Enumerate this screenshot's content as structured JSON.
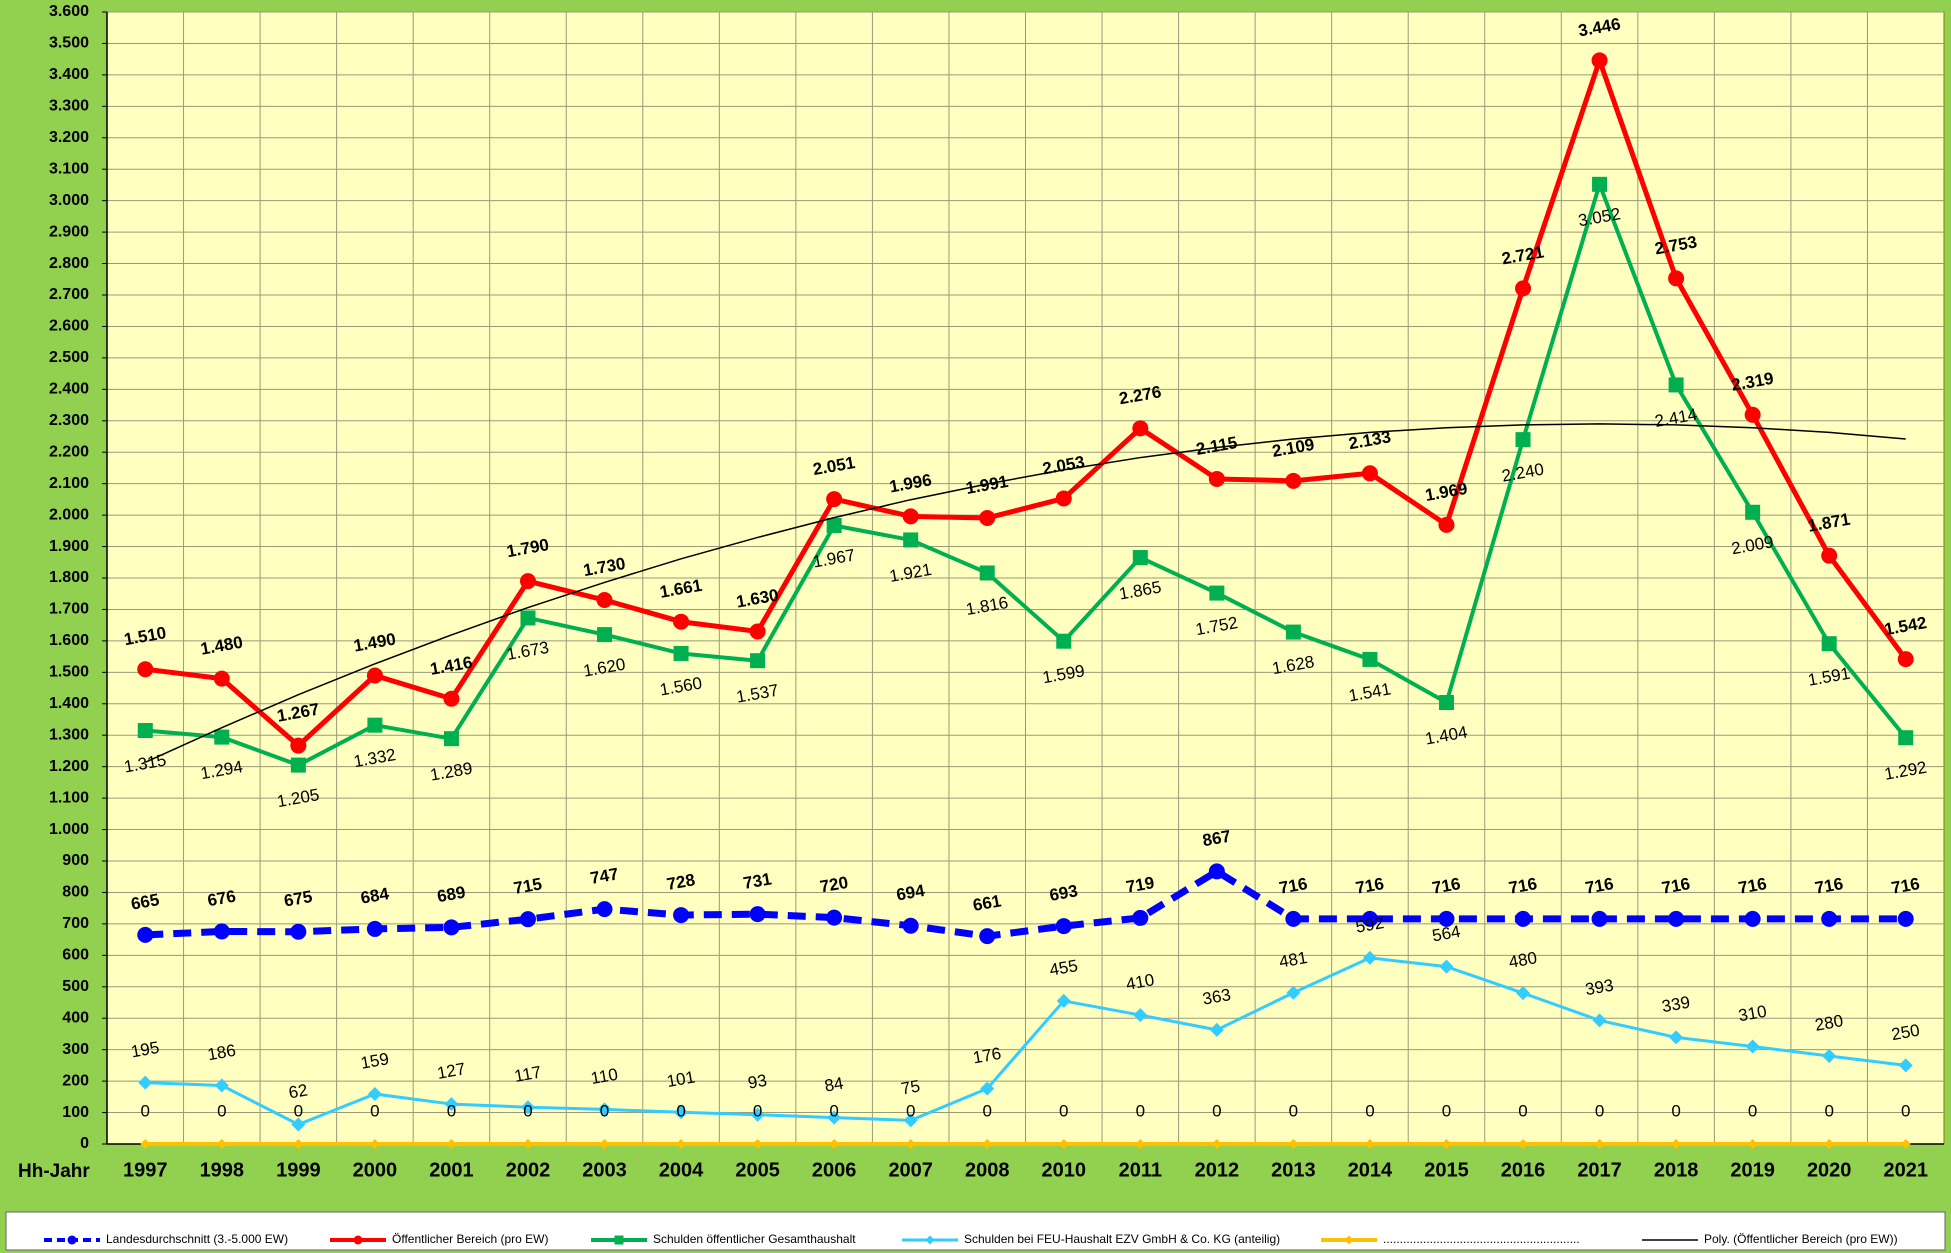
{
  "chart_data": {
    "type": "line",
    "x_label": "Hh-Jahr",
    "categories": [
      "1997",
      "1998",
      "1999",
      "2000",
      "2001",
      "2002",
      "2003",
      "2004",
      "2005",
      "2006",
      "2007",
      "2008",
      "2010",
      "2011",
      "2012",
      "2013",
      "2014",
      "2015",
      "2016",
      "2017",
      "2018",
      "2019",
      "2020",
      "2021"
    ],
    "ylim": [
      0,
      3600
    ],
    "yticks": [
      0,
      100,
      200,
      300,
      400,
      500,
      600,
      700,
      800,
      900,
      {
        "value": 1000,
        "label": "1.000"
      },
      {
        "value": 1100,
        "label": "1.100"
      },
      {
        "value": 1200,
        "label": "1.200"
      },
      {
        "value": 1300,
        "label": "1.300"
      },
      {
        "value": 1400,
        "label": "1.400"
      },
      {
        "value": 1500,
        "label": "1.500"
      },
      {
        "value": 1600,
        "label": "1.600"
      },
      {
        "value": 1700,
        "label": "1.700"
      },
      {
        "value": 1800,
        "label": "1.800"
      },
      {
        "value": 1900,
        "label": "1.900"
      },
      {
        "value": 2000,
        "label": "2.000"
      },
      {
        "value": 2100,
        "label": "2.100"
      },
      {
        "value": 2200,
        "label": "2.200"
      },
      {
        "value": 2300,
        "label": "2.300"
      },
      {
        "value": 2400,
        "label": "2.400"
      },
      {
        "value": 2500,
        "label": "2.500"
      },
      {
        "value": 2600,
        "label": "2.600"
      },
      {
        "value": 2700,
        "label": "2.700"
      },
      {
        "value": 2800,
        "label": "2.800"
      },
      {
        "value": 2900,
        "label": "2.900"
      },
      {
        "value": 3000,
        "label": "3.000"
      },
      {
        "value": 3100,
        "label": "3.100"
      },
      {
        "value": 3200,
        "label": "3.200"
      },
      {
        "value": 3300,
        "label": "3.300"
      },
      {
        "value": 3400,
        "label": "3.400"
      },
      {
        "value": 3500,
        "label": "3.500"
      },
      {
        "value": 3600,
        "label": "3.600"
      }
    ],
    "grid": true,
    "series": [
      {
        "name": "...........................................................",
        "color": "#ffc000",
        "marker": "diamond",
        "dash": false,
        "width": 4,
        "labels": "above",
        "bold": false,
        "values": [
          0,
          0,
          0,
          0,
          0,
          0,
          0,
          0,
          0,
          0,
          0,
          0,
          0,
          0,
          0,
          0,
          0,
          0,
          0,
          0,
          0,
          0,
          0,
          0
        ]
      },
      {
        "name": "Schulden bei FEU-Haushalt EZV GmbH & Co. KG (anteilig)",
        "color": "#33ccff",
        "marker": "diamond",
        "dash": false,
        "width": 3,
        "labels": "above",
        "bold": false,
        "values": [
          195,
          186,
          62,
          159,
          127,
          117,
          110,
          101,
          93,
          84,
          75,
          176,
          455,
          410,
          363,
          481,
          592,
          564,
          480,
          393,
          339,
          310,
          280,
          250
        ]
      },
      {
        "name": "Schulden öffentlicher Gesamthaushalt",
        "color": "#00b050",
        "marker": "square",
        "dash": false,
        "width": 4,
        "labels": "below",
        "bold": false,
        "values": [
          1315,
          1294,
          1205,
          1332,
          1289,
          1673,
          1620,
          1560,
          1537,
          1967,
          1921,
          1816,
          1599,
          1865,
          1752,
          1628,
          1541,
          1404,
          2240,
          3052,
          2414,
          2009,
          1591,
          1292
        ],
        "value_labels": [
          "1.315",
          "1.294",
          "1.205",
          "1.332",
          "1.289",
          "1.673",
          "1.620",
          "1.560",
          "1.537",
          "1.967",
          "1.921",
          "1.816",
          "1.599",
          "1.865",
          "1.752",
          "1.628",
          "1.541",
          "1.404",
          "2.240",
          "3.052",
          "2.414",
          "2.009",
          "1.591",
          "1.292"
        ]
      },
      {
        "name": "Öffentlicher Bereich (pro EW)",
        "color": "#ff0000",
        "marker": "circle",
        "dash": false,
        "width": 5,
        "labels": "above",
        "bold": true,
        "values": [
          1510,
          1480,
          1267,
          1490,
          1416,
          1790,
          1730,
          1661,
          1630,
          2051,
          1996,
          1991,
          2053,
          2276,
          2115,
          2109,
          2133,
          1969,
          2721,
          3446,
          2753,
          2319,
          1871,
          1542
        ],
        "value_labels": [
          "1.510",
          "1.480",
          "1.267",
          "1.490",
          "1.416",
          "1.790",
          "1.730",
          "1.661",
          "1.630",
          "2.051",
          "1.996",
          "1.991",
          "2.053",
          "2.276",
          "2.115",
          "2.109",
          "2.133",
          "1.969",
          "2.721",
          "3.446",
          "2.753",
          "2.319",
          "1.871",
          "1.542"
        ]
      },
      {
        "name": "Poly. (Öffentlicher Bereich (pro EW))",
        "color": "#000000",
        "marker": "none",
        "dash": false,
        "width": 1.5,
        "labels": "none",
        "bold": false,
        "values": [
          1214,
          1324,
          1429,
          1527,
          1619,
          1706,
          1786,
          1861,
          1929,
          1992,
          2049,
          2099,
          2144,
          2183,
          2215,
          2242,
          2263,
          2278,
          2287,
          2290,
          2287,
          2278,
          2263,
          2242
        ]
      },
      {
        "name": "Landesdurchschnitt (3.-5.000 EW)",
        "color": "#0000ff",
        "marker": "circle",
        "dash": true,
        "width": 7,
        "labels": "above",
        "bold": true,
        "values": [
          665,
          676,
          675,
          684,
          689,
          715,
          747,
          728,
          731,
          720,
          694,
          661,
          693,
          719,
          867,
          716,
          716,
          716,
          716,
          716,
          716,
          716,
          716,
          716
        ]
      }
    ]
  }
}
